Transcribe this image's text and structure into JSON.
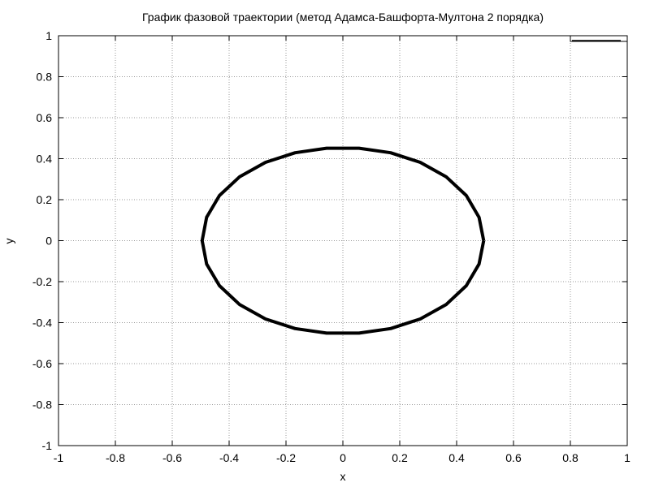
{
  "chart_data": {
    "type": "line",
    "title": "График фазовой траектории (метод Адамса-Башфорта-Мултона 2 порядка)",
    "xlabel": "x",
    "ylabel": "y",
    "xlim": [
      -1,
      1
    ],
    "ylim": [
      -1,
      1
    ],
    "xticks": [
      -1,
      -0.8,
      -0.6,
      -0.4,
      -0.2,
      0,
      0.2,
      0.4,
      0.6,
      0.8,
      1
    ],
    "yticks": [
      -1,
      -0.8,
      -0.6,
      -0.4,
      -0.2,
      0,
      0.2,
      0.4,
      0.6,
      0.8,
      1
    ],
    "xtick_labels": [
      "-1",
      "-0.8",
      "-0.6",
      "-0.4",
      "-0.2",
      "0",
      "0.2",
      "0.4",
      "0.6",
      "0.8",
      "1"
    ],
    "ytick_labels": [
      "-1",
      "-0.8",
      "-0.6",
      "-0.4",
      "-0.2",
      "0",
      "0.2",
      "0.4",
      "0.6",
      "0.8",
      "1"
    ],
    "grid": true,
    "legend_position": "top-right",
    "series": [
      {
        "color": "#000000",
        "x": [
          0.495,
          0.479,
          0.434,
          0.363,
          0.272,
          0.168,
          0.057,
          -0.057,
          -0.168,
          -0.272,
          -0.363,
          -0.434,
          -0.479,
          -0.495,
          -0.479,
          -0.434,
          -0.363,
          -0.272,
          -0.168,
          -0.057,
          0.057,
          0.168,
          0.272,
          0.363,
          0.434,
          0.479,
          0.495
        ],
        "y": [
          0,
          0.114,
          0.22,
          0.312,
          0.382,
          0.429,
          0.451,
          0.451,
          0.429,
          0.382,
          0.312,
          0.22,
          0.114,
          0,
          -0.114,
          -0.22,
          -0.312,
          -0.382,
          -0.429,
          -0.451,
          -0.451,
          -0.429,
          -0.382,
          -0.312,
          -0.22,
          -0.114,
          0
        ]
      }
    ]
  }
}
